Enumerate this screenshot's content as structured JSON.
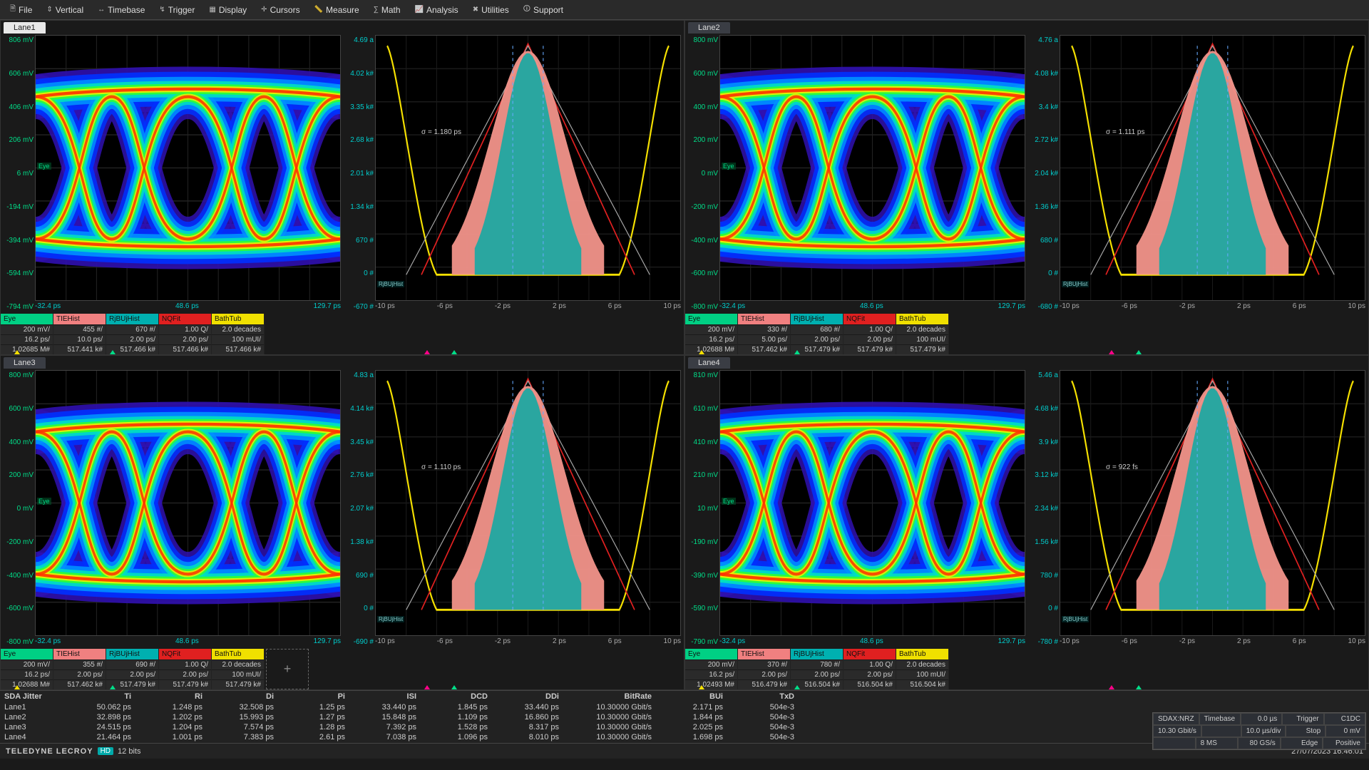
{
  "menu": [
    {
      "label": "File",
      "icon": "🗎"
    },
    {
      "label": "Vertical",
      "icon": "⇕"
    },
    {
      "label": "Timebase",
      "icon": "↔"
    },
    {
      "label": "Trigger",
      "icon": "↯"
    },
    {
      "label": "Display",
      "icon": "▦"
    },
    {
      "label": "Cursors",
      "icon": "✛"
    },
    {
      "label": "Measure",
      "icon": "📏"
    },
    {
      "label": "Math",
      "icon": "∑"
    },
    {
      "label": "Analysis",
      "icon": "📈"
    },
    {
      "label": "Utilities",
      "icon": "✖"
    },
    {
      "label": "Support",
      "icon": "🛈"
    }
  ],
  "lanes": [
    {
      "name": "Lane1",
      "active": true,
      "eye": {
        "ylabels": [
          "806 mV",
          "606 mV",
          "406 mV",
          "206 mV",
          "6 mV",
          "-194 mV",
          "-394 mV",
          "-594 mV",
          "-794 mV"
        ],
        "xlabels": [
          "-32.4 ps",
          "48.6 ps",
          "129.7 ps"
        ]
      },
      "hist": {
        "ylabels": [
          "4.69 a",
          "4.02 k#",
          "3.35 k#",
          "2.68 k#",
          "2.01 k#",
          "1.34 k#",
          "670 #",
          "0 #",
          "-670 #"
        ],
        "xlabels": [
          "-10 ps",
          "-6 ps",
          "-2 ps",
          "2 ps",
          "6 ps",
          "10 ps"
        ],
        "sigma": "σ = 1.180 ps"
      },
      "meas": [
        {
          "hdr": "Eye",
          "bg": "#00d084",
          "vals": [
            "200 mV/",
            "16.2 ps/",
            "1.02685 M#"
          ]
        },
        {
          "hdr": "TIEHist",
          "bg": "#f08080",
          "vals": [
            "455 #/",
            "10.0 ps/",
            "517.441 k#"
          ]
        },
        {
          "hdr": "RjBUjHist",
          "bg": "#00b0b0",
          "vals": [
            "670 #/",
            "2.00 ps/",
            "517.466 k#"
          ]
        },
        {
          "hdr": "NQFit",
          "bg": "#e02020",
          "vals": [
            "1.00 Q/",
            "2.00 ps/",
            "517.466 k#"
          ]
        },
        {
          "hdr": "BathTub",
          "bg": "#f0e000",
          "vals": [
            "2.0 decades",
            "100 mUI/",
            "517.466 k#"
          ]
        }
      ]
    },
    {
      "name": "Lane2",
      "active": false,
      "eye": {
        "ylabels": [
          "800 mV",
          "600 mV",
          "400 mV",
          "200 mV",
          "0 mV",
          "-200 mV",
          "-400 mV",
          "-600 mV",
          "-800 mV"
        ],
        "xlabels": [
          "-32.4 ps",
          "48.6 ps",
          "129.7 ps"
        ]
      },
      "hist": {
        "ylabels": [
          "4.76 a",
          "4.08 k#",
          "3.4 k#",
          "2.72 k#",
          "2.04 k#",
          "1.36 k#",
          "680 #",
          "0 #",
          "-680 #"
        ],
        "xlabels": [
          "-10 ps",
          "-6 ps",
          "-2 ps",
          "2 ps",
          "6 ps",
          "10 ps"
        ],
        "sigma": "σ = 1.111 ps"
      },
      "meas": [
        {
          "hdr": "Eye",
          "bg": "#00d084",
          "vals": [
            "200 mV/",
            "16.2 ps/",
            "1.02688 M#"
          ]
        },
        {
          "hdr": "TIEHist",
          "bg": "#f08080",
          "vals": [
            "330 #/",
            "5.00 ps/",
            "517.462 k#"
          ]
        },
        {
          "hdr": "RjBUjHist",
          "bg": "#00b0b0",
          "vals": [
            "680 #/",
            "2.00 ps/",
            "517.479 k#"
          ]
        },
        {
          "hdr": "NQFit",
          "bg": "#e02020",
          "vals": [
            "1.00 Q/",
            "2.00 ps/",
            "517.479 k#"
          ]
        },
        {
          "hdr": "BathTub",
          "bg": "#f0e000",
          "vals": [
            "2.0 decades",
            "100 mUI/",
            "517.479 k#"
          ]
        }
      ]
    },
    {
      "name": "Lane3",
      "active": false,
      "eye": {
        "ylabels": [
          "800 mV",
          "600 mV",
          "400 mV",
          "200 mV",
          "0 mV",
          "-200 mV",
          "-400 mV",
          "-600 mV",
          "-800 mV"
        ],
        "xlabels": [
          "-32.4 ps",
          "48.6 ps",
          "129.7 ps"
        ]
      },
      "hist": {
        "ylabels": [
          "4.83 a",
          "4.14 k#",
          "3.45 k#",
          "2.76 k#",
          "2.07 k#",
          "1.38 k#",
          "690 #",
          "0 #",
          "-690 #"
        ],
        "xlabels": [
          "-10 ps",
          "-6 ps",
          "-2 ps",
          "2 ps",
          "6 ps",
          "10 ps"
        ],
        "sigma": "σ = 1.110 ps"
      },
      "meas": [
        {
          "hdr": "Eye",
          "bg": "#00d084",
          "vals": [
            "200 mV/",
            "16.2 ps/",
            "1.02688 M#"
          ]
        },
        {
          "hdr": "TIEHist",
          "bg": "#f08080",
          "vals": [
            "355 #/",
            "2.00 ps/",
            "517.462 k#"
          ]
        },
        {
          "hdr": "RjBUjHist",
          "bg": "#00b0b0",
          "vals": [
            "690 #/",
            "2.00 ps/",
            "517.479 k#"
          ]
        },
        {
          "hdr": "NQFit",
          "bg": "#e02020",
          "vals": [
            "1.00 Q/",
            "2.00 ps/",
            "517.479 k#"
          ]
        },
        {
          "hdr": "BathTub",
          "bg": "#f0e000",
          "vals": [
            "2.0 decades",
            "100 mUI/",
            "517.479 k#"
          ]
        }
      ],
      "show_plus": true
    },
    {
      "name": "Lane4",
      "active": false,
      "eye": {
        "ylabels": [
          "810 mV",
          "610 mV",
          "410 mV",
          "210 mV",
          "10 mV",
          "-190 mV",
          "-390 mV",
          "-590 mV",
          "-790 mV"
        ],
        "xlabels": [
          "-32.4 ps",
          "48.6 ps",
          "129.7 ps"
        ]
      },
      "hist": {
        "ylabels": [
          "5.46 a",
          "4.68 k#",
          "3.9 k#",
          "3.12 k#",
          "2.34 k#",
          "1.56 k#",
          "780 #",
          "0 #",
          "-780 #"
        ],
        "xlabels": [
          "-10 ps",
          "-6 ps",
          "-2 ps",
          "2 ps",
          "6 ps",
          "10 ps"
        ],
        "sigma": "σ = 922 fs"
      },
      "meas": [
        {
          "hdr": "Eye",
          "bg": "#00d084",
          "vals": [
            "200 mV/",
            "16.2 ps/",
            "1.02493 M#"
          ]
        },
        {
          "hdr": "TIEHist",
          "bg": "#f08080",
          "vals": [
            "370 #/",
            "2.00 ps/",
            "516.479 k#"
          ]
        },
        {
          "hdr": "RjBUjHist",
          "bg": "#00b0b0",
          "vals": [
            "780 #/",
            "2.00 ps/",
            "516.504 k#"
          ]
        },
        {
          "hdr": "NQFit",
          "bg": "#e02020",
          "vals": [
            "1.00 Q/",
            "2.00 ps/",
            "516.504 k#"
          ]
        },
        {
          "hdr": "BathTub",
          "bg": "#f0e000",
          "vals": [
            "2.0 decades",
            "100 mUI/",
            "516.504 k#"
          ]
        }
      ]
    }
  ],
  "jitter": {
    "title": "SDA Jitter",
    "cols": [
      "Ti",
      "Ri",
      "Di",
      "Pi",
      "ISI",
      "DCD",
      "DDi",
      "BitRate",
      "BUi",
      "TxD"
    ],
    "rows": [
      {
        "lane": "Lane1",
        "vals": [
          "50.062 ps",
          "1.248 ps",
          "32.508 ps",
          "1.25 ps",
          "33.440 ps",
          "1.845 ps",
          "33.440 ps",
          "10.30000 Gbit/s",
          "2.171 ps",
          "504e-3"
        ]
      },
      {
        "lane": "Lane2",
        "vals": [
          "32.898 ps",
          "1.202 ps",
          "15.993 ps",
          "1.27 ps",
          "15.848 ps",
          "1.109 ps",
          "16.860 ps",
          "10.30000 Gbit/s",
          "1.844 ps",
          "504e-3"
        ]
      },
      {
        "lane": "Lane3",
        "vals": [
          "24.515 ps",
          "1.204 ps",
          "7.574 ps",
          "1.28 ps",
          "7.392 ps",
          "1.528 ps",
          "8.317 ps",
          "10.30000 Gbit/s",
          "2.025 ps",
          "504e-3"
        ]
      },
      {
        "lane": "Lane4",
        "vals": [
          "21.464 ps",
          "1.001 ps",
          "7.383 ps",
          "2.61 ps",
          "7.038 ps",
          "1.096 ps",
          "8.010 ps",
          "10.30000 Gbit/s",
          "1.698 ps",
          "504e-3"
        ]
      }
    ]
  },
  "status": {
    "r1": [
      "SDAX:NRZ",
      "Timebase",
      "0.0 µs",
      "Trigger",
      "C1DC"
    ],
    "r2": [
      "10.30 Gbit/s",
      "",
      "10.0 µs/div",
      "Stop",
      "0 mV"
    ],
    "r3": [
      "",
      "8 MS",
      "80 GS/s",
      "Edge",
      "Positive"
    ]
  },
  "footer": {
    "brand": "TELEDYNE LECROY",
    "hd": "HD",
    "bits": "12 bits",
    "datetime": "27/07/2023 16:46:01"
  },
  "colors": {
    "hist_outer": "#f2948a",
    "hist_inner": "#2aa6a0",
    "bathtub": "#f5e000",
    "nqfit": "#e02020"
  }
}
